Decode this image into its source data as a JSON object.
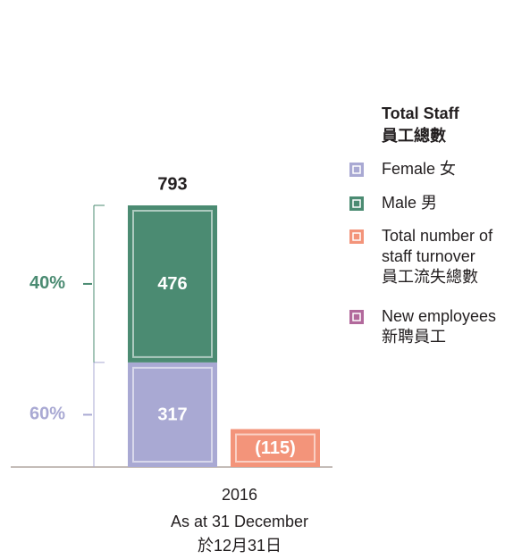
{
  "chart_data": {
    "type": "stacked_bar",
    "categories": [
      "2016"
    ],
    "xlabel": [
      "As at 31 December",
      "於12月31日"
    ],
    "legend_title": [
      "Total Staff",
      "員工總數"
    ],
    "totals": [
      793
    ],
    "annotations": [
      "40%",
      "60%"
    ],
    "series": [
      {
        "name": "Female 女",
        "color": "#a9a9d3",
        "stack": "staff",
        "values": [
          317
        ]
      },
      {
        "name": "Male 男",
        "color": "#4b8b72",
        "stack": "staff",
        "values": [
          476
        ]
      },
      {
        "name": "Total number of\nstaff turnover\n員工流失總數",
        "color": "#f3947a",
        "stack": "turnover",
        "values": [
          115
        ],
        "value_labels": [
          "(115)"
        ]
      },
      {
        "name": "New employees\n新聘員工",
        "color": "#b2699c",
        "stack": "new",
        "values": [
          null
        ]
      }
    ]
  }
}
